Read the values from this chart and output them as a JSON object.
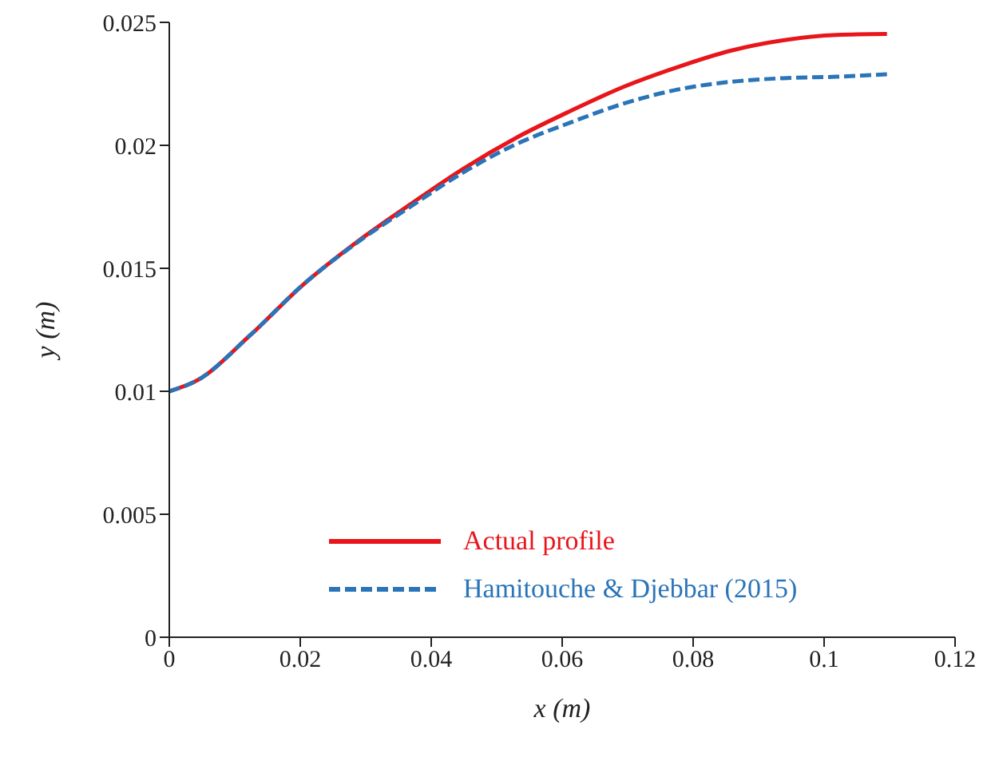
{
  "chart_data": {
    "type": "line",
    "xlabel": "x (m)",
    "ylabel": "y (m)",
    "x": [
      0,
      0.0043,
      0.0124,
      0.0205,
      0.0287,
      0.0368,
      0.0449,
      0.053,
      0.0612,
      0.0693,
      0.0775,
      0.0856,
      0.0937,
      0.1019,
      0.1096
    ],
    "series": [
      {
        "name": "Actual profile",
        "color": "#e8151b",
        "line_style": "solid",
        "values": [
          0.01,
          0.01045,
          0.01229,
          0.01435,
          0.01608,
          0.0176,
          0.01905,
          0.02031,
          0.02139,
          0.02237,
          0.02317,
          0.02384,
          0.02427,
          0.02449,
          0.02453
        ]
      },
      {
        "name": "Hamitouche & Djebbar (2015)",
        "color": "#2a74b8",
        "line_style": "dashed",
        "values": [
          0.01,
          0.01045,
          0.01229,
          0.01435,
          0.01605,
          0.0175,
          0.0189,
          0.02005,
          0.02092,
          0.02169,
          0.02226,
          0.02258,
          0.02273,
          0.02279,
          0.02289
        ]
      }
    ],
    "xlim": [
      0,
      0.12
    ],
    "xticks": [
      0,
      0.02,
      0.04,
      0.06,
      0.08,
      0.1,
      0.12
    ],
    "ylim": [
      0,
      0.025
    ],
    "yticks": [
      0,
      0.005,
      0.01,
      0.015,
      0.02,
      0.025
    ],
    "grid": false,
    "legend": "bottom",
    "marker": "none"
  }
}
